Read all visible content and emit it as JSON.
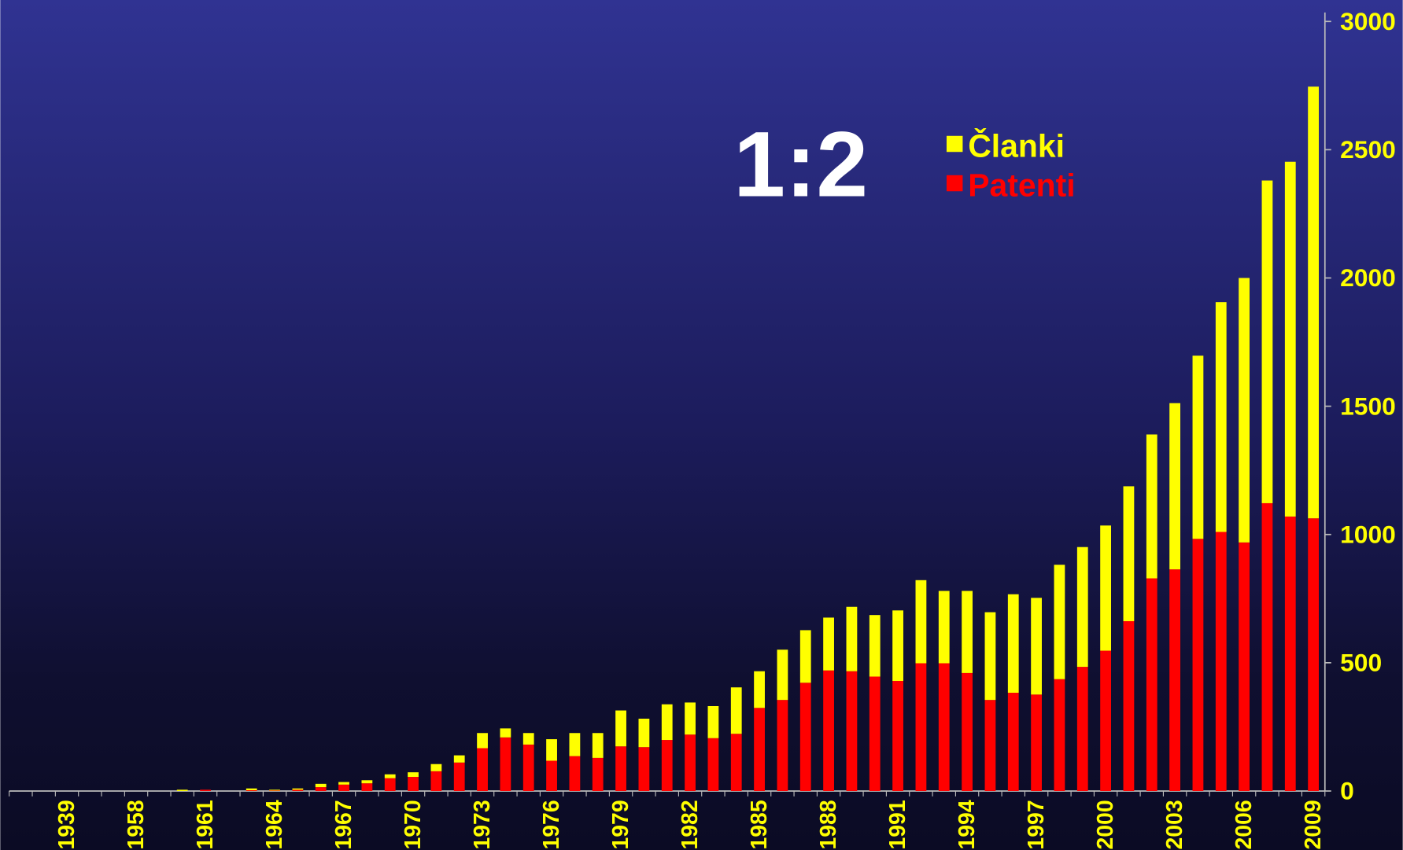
{
  "chart_data": {
    "type": "stacked-bar",
    "annotation": "1:2",
    "categories": [
      null,
      null,
      "1939",
      null,
      null,
      "1958",
      null,
      null,
      "1961",
      null,
      null,
      "1964",
      null,
      null,
      "1967",
      null,
      null,
      "1970",
      null,
      null,
      "1973",
      null,
      null,
      "1976",
      null,
      null,
      "1979",
      null,
      null,
      "1982",
      null,
      null,
      "1985",
      null,
      null,
      "1988",
      null,
      null,
      "1991",
      null,
      null,
      "1994",
      null,
      null,
      "1997",
      null,
      null,
      "2000",
      null,
      null,
      "2003",
      null,
      null,
      "2006",
      null,
      null,
      "2009"
    ],
    "series": [
      {
        "name": "Patenti",
        "color": "#ff0000",
        "values": [
          0,
          0,
          0,
          0,
          0,
          0,
          0,
          0,
          5,
          0,
          3,
          2,
          5,
          15,
          25,
          30,
          50,
          55,
          77,
          111,
          167,
          209,
          181,
          118,
          136,
          129,
          174,
          171,
          199,
          220,
          206,
          223,
          324,
          355,
          422,
          470,
          467,
          446,
          429,
          498,
          498,
          460,
          355,
          383,
          376,
          436,
          484,
          547,
          662,
          829,
          864,
          983,
          1010,
          969,
          1122,
          1070,
          1063
        ]
      },
      {
        "name": "Članki",
        "color": "#ffff00",
        "values": [
          0,
          0,
          0,
          0,
          0,
          0,
          0,
          5,
          0,
          0,
          7,
          3,
          5,
          13,
          10,
          12,
          15,
          18,
          28,
          28,
          59,
          35,
          45,
          84,
          90,
          97,
          140,
          111,
          139,
          125,
          125,
          181,
          143,
          196,
          205,
          206,
          251,
          240,
          275,
          324,
          282,
          320,
          342,
          384,
          377,
          446,
          467,
          488,
          526,
          561,
          648,
          714,
          896,
          1031,
          1258,
          1383,
          1683
        ]
      }
    ],
    "ylim": [
      0,
      3000
    ],
    "yticks": [
      0,
      500,
      1000,
      1500,
      2000,
      2500,
      3000
    ],
    "axis_side": "right",
    "tick_color": "#ffff00"
  }
}
